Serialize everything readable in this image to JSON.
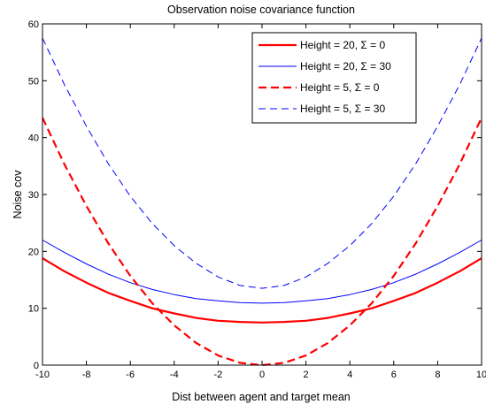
{
  "chart_data": {
    "type": "line",
    "title": "Observation noise covariance function",
    "xlabel": "Dist between agent and target mean",
    "ylabel": "Noise cov",
    "xlim": [
      -10,
      10
    ],
    "ylim": [
      0,
      60
    ],
    "x_ticks": [
      "-10",
      "-8",
      "-6",
      "-4",
      "-2",
      "0",
      "2",
      "4",
      "6",
      "8",
      "10"
    ],
    "y_ticks": [
      "0",
      "10",
      "20",
      "30",
      "40",
      "50",
      "60"
    ],
    "grid": false,
    "legend_position": "top-right",
    "x": [
      -10,
      -9,
      -8,
      -7,
      -6,
      -5,
      -4,
      -3,
      -2,
      -1,
      0,
      1,
      2,
      3,
      4,
      5,
      6,
      7,
      8,
      9,
      10
    ],
    "series": [
      {
        "name": "Height = 20, Σ = 0",
        "color": "#ff0000",
        "style": "solid",
        "width": "thick",
        "values": [
          18.8,
          16.5,
          14.5,
          12.7,
          11.3,
          10.0,
          9.1,
          8.3,
          7.8,
          7.6,
          7.5,
          7.6,
          7.8,
          8.3,
          9.1,
          10.0,
          11.3,
          12.7,
          14.5,
          16.5,
          18.8
        ]
      },
      {
        "name": "Height = 20, Σ = 30",
        "color": "#0000ff",
        "style": "solid",
        "width": "thin",
        "values": [
          22.0,
          19.8,
          17.8,
          16.0,
          14.5,
          13.3,
          12.4,
          11.7,
          11.3,
          11.0,
          10.9,
          11.0,
          11.3,
          11.7,
          12.4,
          13.3,
          14.5,
          16.0,
          17.8,
          19.8,
          22.0
        ]
      },
      {
        "name": "Height = 5, Σ = 0",
        "color": "#ff0000",
        "style": "dashed",
        "width": "thick",
        "values": [
          43.5,
          35.3,
          28.0,
          21.4,
          15.7,
          10.9,
          7.0,
          3.9,
          1.7,
          0.4,
          0.0,
          0.4,
          1.7,
          3.9,
          7.0,
          10.9,
          15.7,
          21.4,
          28.0,
          35.3,
          43.5
        ]
      },
      {
        "name": "Height = 5, Σ = 30",
        "color": "#0000ff",
        "style": "dashed",
        "width": "thin",
        "values": [
          57.5,
          49.3,
          42.0,
          35.4,
          29.7,
          24.9,
          21.0,
          17.9,
          15.5,
          14.0,
          13.5,
          14.0,
          15.5,
          17.9,
          21.0,
          24.9,
          29.7,
          35.4,
          42.0,
          49.3,
          57.5
        ]
      }
    ]
  }
}
